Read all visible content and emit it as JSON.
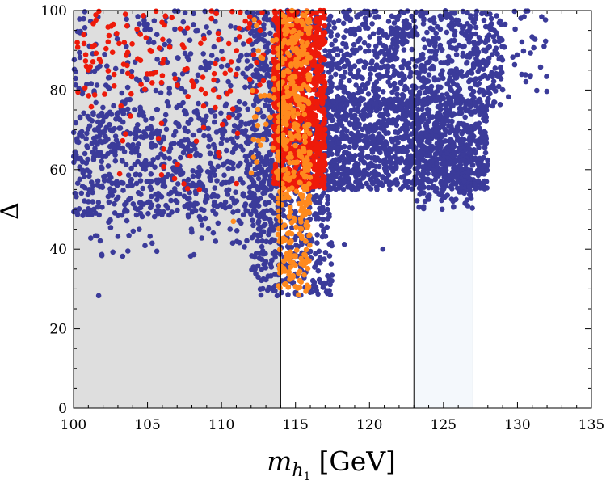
{
  "chart_data": {
    "type": "scatter",
    "title": "",
    "xlabel_main": "m",
    "xlabel_sub": "h",
    "xlabel_subsub": "1",
    "xlabel_unit": "[GeV]",
    "ylabel": "Δ",
    "xlim": [
      100,
      135
    ],
    "ylim": [
      0,
      100
    ],
    "x_ticks": [
      100,
      105,
      110,
      115,
      120,
      125,
      130,
      135
    ],
    "y_ticks": [
      0,
      20,
      40,
      60,
      80,
      100
    ],
    "x_tick_labels": [
      "100",
      "105",
      "110",
      "115",
      "120",
      "125",
      "130",
      "135"
    ],
    "y_tick_labels": [
      "0",
      "20",
      "40",
      "60",
      "80",
      "100"
    ],
    "regions": [
      {
        "name": "excluded-region",
        "x": [
          100,
          114
        ],
        "y": [
          0,
          100
        ],
        "color": "#dedede"
      },
      {
        "name": "higgs-mass-band",
        "x": [
          123,
          127
        ],
        "y": [
          0,
          100
        ],
        "color": "#f4f8fc"
      }
    ],
    "series": [
      {
        "name": "blue-points",
        "color": "#3b3b9a",
        "clusters": [
          {
            "xmin": 100,
            "xmax": 114,
            "ymin": 48,
            "ymax": 75,
            "n": 700
          },
          {
            "xmin": 100,
            "xmax": 114,
            "ymin": 75,
            "ymax": 100,
            "n": 240
          },
          {
            "xmin": 101,
            "xmax": 113,
            "ymin": 38,
            "ymax": 50,
            "n": 50
          },
          {
            "xmin": 112,
            "xmax": 117.5,
            "ymin": 28,
            "ymax": 100,
            "n": 800
          },
          {
            "xmin": 117,
            "xmax": 128,
            "ymin": 55,
            "ymax": 78,
            "n": 1200
          },
          {
            "xmin": 117,
            "xmax": 129,
            "ymin": 76,
            "ymax": 100,
            "n": 700
          },
          {
            "xmin": 123,
            "xmax": 127,
            "ymin": 50,
            "ymax": 70,
            "n": 150
          },
          {
            "xmin": 128,
            "xmax": 132,
            "ymin": 78,
            "ymax": 100,
            "n": 35
          }
        ],
        "points": [
          [
            101.7,
            28.3
          ],
          [
            131.9,
            92.3
          ],
          [
            131.8,
            91.0
          ],
          [
            130.3,
            92.1
          ],
          [
            129.8,
            99.8
          ],
          [
            130.7,
            99.9
          ],
          [
            120.9,
            40.0
          ],
          [
            118.3,
            41.2
          ]
        ]
      },
      {
        "name": "red-points",
        "color": "#ee1a0a",
        "clusters": [
          {
            "xmin": 113.5,
            "xmax": 117.0,
            "ymin": 55,
            "ymax": 100,
            "n": 900
          },
          {
            "xmin": 100.0,
            "xmax": 113.0,
            "ymin": 78,
            "ymax": 100,
            "n": 130
          },
          {
            "xmin": 103.0,
            "xmax": 112.0,
            "ymin": 55,
            "ymax": 78,
            "n": 25
          }
        ],
        "points": [
          [
            100.3,
            79.5
          ],
          [
            101.2,
            75.8
          ],
          [
            109.8,
            64.2
          ],
          [
            108.5,
            55.0
          ]
        ]
      },
      {
        "name": "orange-points",
        "color": "#ff8a1e",
        "clusters": [
          {
            "xmin": 113.8,
            "xmax": 116.0,
            "ymin": 30,
            "ymax": 100,
            "n": 420
          },
          {
            "xmin": 112.0,
            "xmax": 114.0,
            "ymin": 55,
            "ymax": 100,
            "n": 30
          }
        ],
        "points": [
          [
            110.8,
            47.0
          ],
          [
            115.2,
            28.5
          ],
          [
            115.7,
            29.4
          ],
          [
            115.0,
            30.6
          ]
        ]
      }
    ]
  }
}
